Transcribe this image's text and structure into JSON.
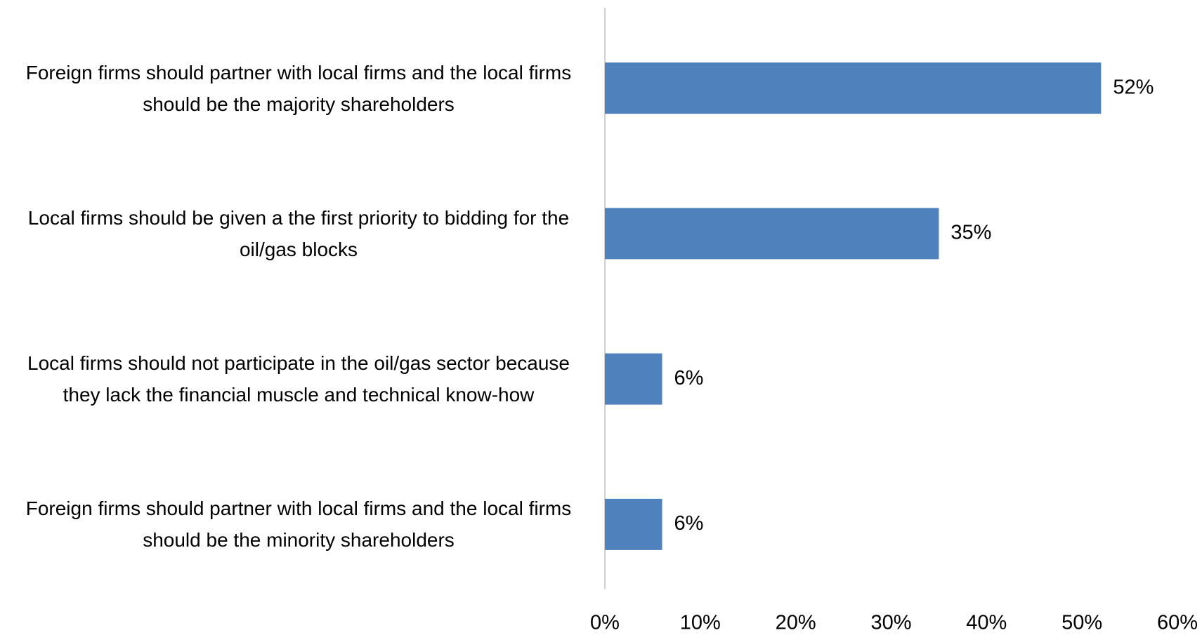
{
  "chart_data": {
    "type": "bar",
    "orientation": "horizontal",
    "categories": [
      "Foreign firms should partner with local firms and the local firms should be the majority shareholders",
      "Local firms should be given a the first priority to bidding for the oil/gas blocks",
      "Local firms should not participate in the oil/gas sector because they lack the financial muscle and technical know-how",
      "Foreign firms should partner with local firms and the local firms should be the minority shareholders"
    ],
    "values": [
      52,
      35,
      6,
      6
    ],
    "value_labels": [
      "52%",
      "35%",
      "6%",
      "6%"
    ],
    "color": "#4f81bd",
    "xlim": [
      0,
      60
    ],
    "xticks": [
      {
        "value": 0,
        "label": "0%"
      },
      {
        "value": 10,
        "label": "10%"
      },
      {
        "value": 20,
        "label": "20%"
      },
      {
        "value": 30,
        "label": "30%"
      },
      {
        "value": 40,
        "label": "40%"
      },
      {
        "value": 50,
        "label": "50%"
      },
      {
        "value": 60,
        "label": "60%"
      }
    ],
    "grid": false
  }
}
